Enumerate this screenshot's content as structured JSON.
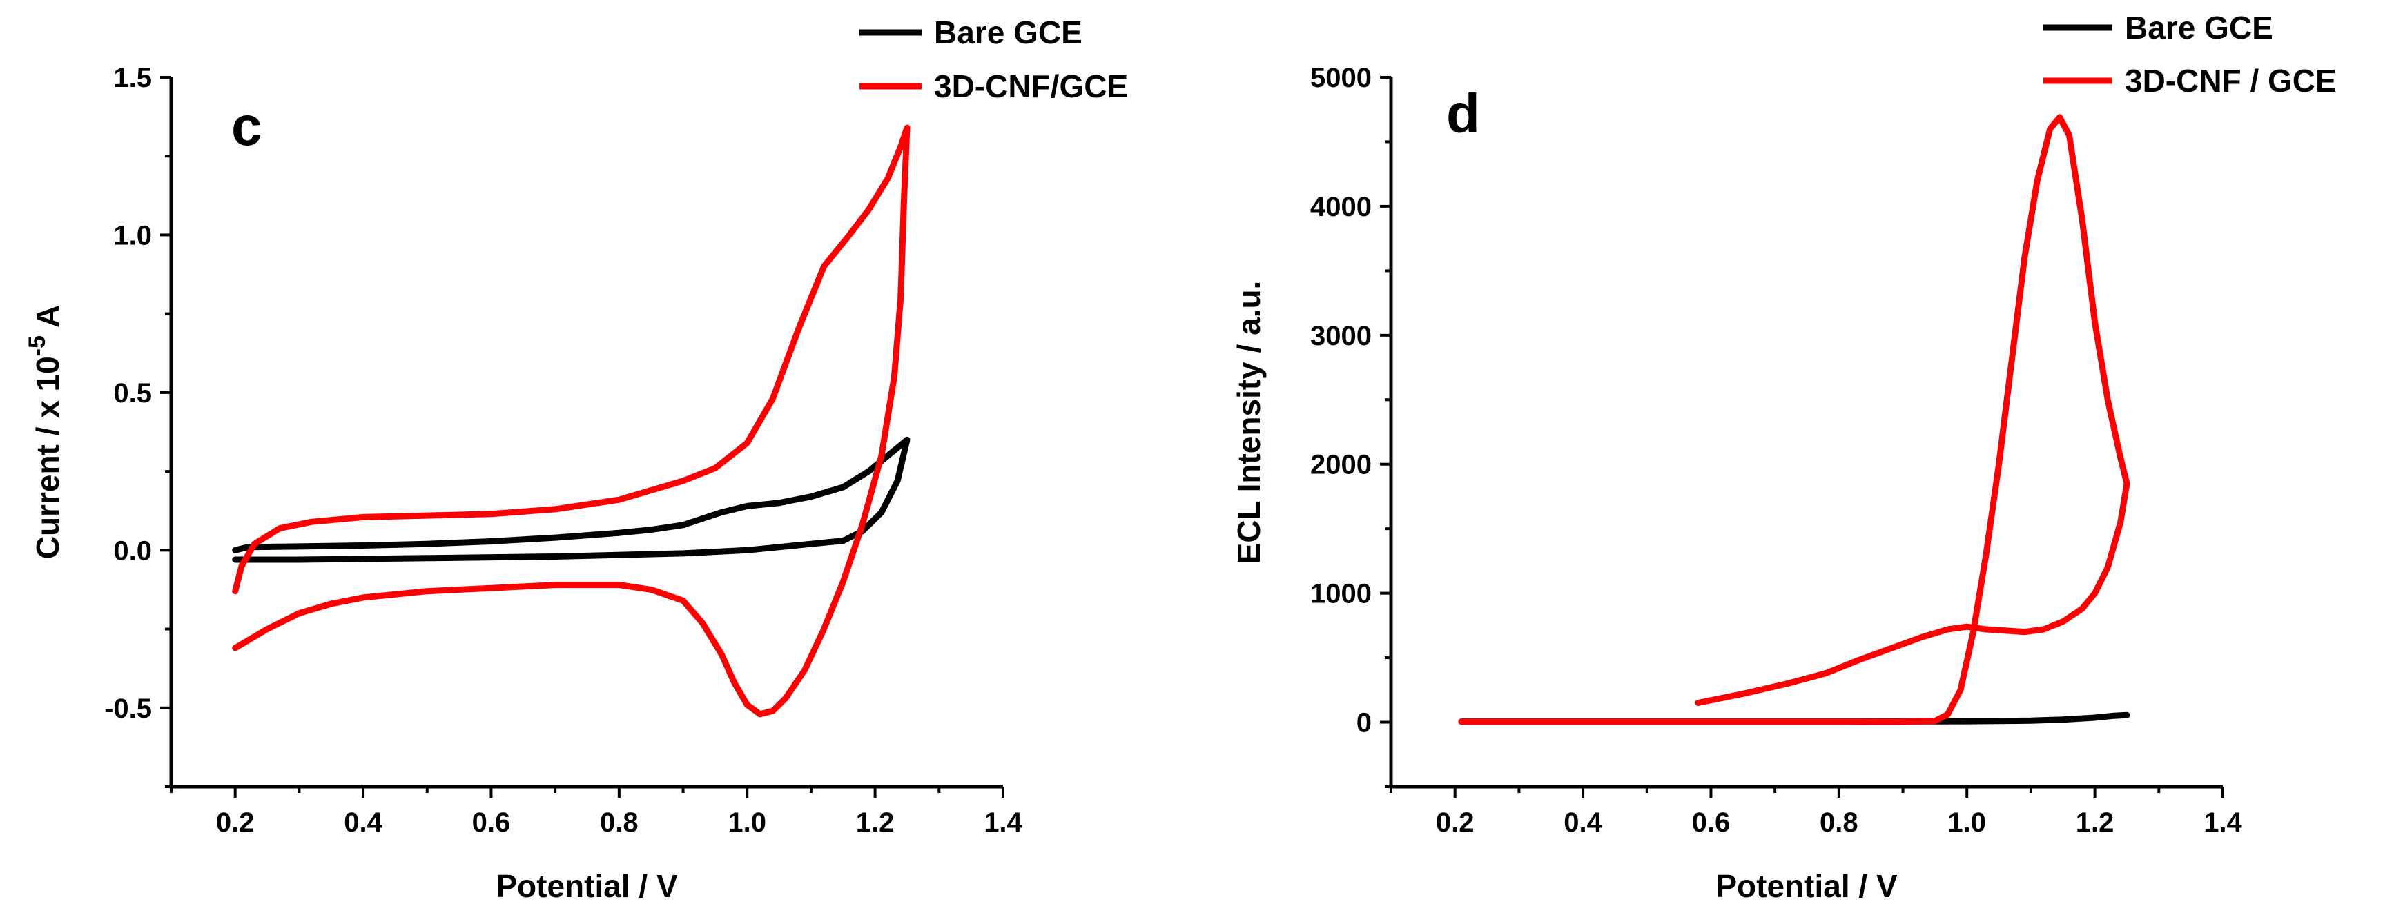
{
  "colors": {
    "bare": "#000000",
    "cnf": "#ff0000"
  },
  "chart_data": [
    {
      "type": "line",
      "panel_label": "c",
      "title": "",
      "xlabel": "Potential / V",
      "ylabel_prefix": "Current / x 10",
      "ylabel_exp": "-5",
      "ylabel_suffix": " A",
      "xlim": [
        0.1,
        1.4
      ],
      "ylim": [
        -0.75,
        1.5
      ],
      "xticks": [
        0.2,
        0.4,
        0.6,
        0.8,
        1.0,
        1.2,
        1.4
      ],
      "xtick_labels": [
        "0.2",
        "0.4",
        "0.6",
        "0.8",
        "1.0",
        "1.2",
        "1.4"
      ],
      "yticks": [
        -0.5,
        0.0,
        0.5,
        1.0,
        1.5
      ],
      "ytick_labels": [
        "-0.5",
        "0.0",
        "0.5",
        "1.0",
        "1.5"
      ],
      "legend_position": "top-right",
      "series": [
        {
          "name": "Bare GCE",
          "color": "#000000",
          "points": [
            [
              0.2,
              -0.03
            ],
            [
              0.3,
              -0.03
            ],
            [
              0.5,
              -0.025
            ],
            [
              0.7,
              -0.02
            ],
            [
              0.9,
              -0.01
            ],
            [
              1.0,
              0.0
            ],
            [
              1.1,
              0.02
            ],
            [
              1.15,
              0.03
            ],
            [
              1.18,
              0.06
            ],
            [
              1.21,
              0.12
            ],
            [
              1.235,
              0.22
            ],
            [
              1.25,
              0.35
            ],
            [
              1.22,
              0.3
            ],
            [
              1.19,
              0.25
            ],
            [
              1.15,
              0.2
            ],
            [
              1.1,
              0.17
            ],
            [
              1.05,
              0.15
            ],
            [
              1.0,
              0.14
            ],
            [
              0.96,
              0.12
            ],
            [
              0.93,
              0.1
            ],
            [
              0.9,
              0.08
            ],
            [
              0.85,
              0.065
            ],
            [
              0.8,
              0.055
            ],
            [
              0.7,
              0.04
            ],
            [
              0.6,
              0.028
            ],
            [
              0.5,
              0.02
            ],
            [
              0.4,
              0.015
            ],
            [
              0.3,
              0.012
            ],
            [
              0.22,
              0.01
            ],
            [
              0.2,
              0.0
            ]
          ]
        },
        {
          "name": "3D-CNF/GCE",
          "color": "#ff0000",
          "points": [
            [
              0.2,
              -0.13
            ],
            [
              0.21,
              -0.05
            ],
            [
              0.23,
              0.02
            ],
            [
              0.27,
              0.07
            ],
            [
              0.32,
              0.09
            ],
            [
              0.4,
              0.105
            ],
            [
              0.5,
              0.11
            ],
            [
              0.6,
              0.115
            ],
            [
              0.7,
              0.13
            ],
            [
              0.8,
              0.16
            ],
            [
              0.9,
              0.22
            ],
            [
              0.95,
              0.26
            ],
            [
              1.0,
              0.34
            ],
            [
              1.04,
              0.48
            ],
            [
              1.08,
              0.7
            ],
            [
              1.12,
              0.9
            ],
            [
              1.16,
              1.0
            ],
            [
              1.19,
              1.08
            ],
            [
              1.22,
              1.18
            ],
            [
              1.24,
              1.28
            ],
            [
              1.25,
              1.34
            ],
            [
              1.245,
              1.1
            ],
            [
              1.24,
              0.8
            ],
            [
              1.23,
              0.55
            ],
            [
              1.21,
              0.3
            ],
            [
              1.18,
              0.08
            ],
            [
              1.15,
              -0.1
            ],
            [
              1.12,
              -0.25
            ],
            [
              1.09,
              -0.38
            ],
            [
              1.06,
              -0.47
            ],
            [
              1.04,
              -0.51
            ],
            [
              1.02,
              -0.52
            ],
            [
              1.0,
              -0.49
            ],
            [
              0.98,
              -0.42
            ],
            [
              0.96,
              -0.33
            ],
            [
              0.93,
              -0.23
            ],
            [
              0.9,
              -0.16
            ],
            [
              0.85,
              -0.125
            ],
            [
              0.8,
              -0.11
            ],
            [
              0.7,
              -0.11
            ],
            [
              0.6,
              -0.12
            ],
            [
              0.5,
              -0.13
            ],
            [
              0.4,
              -0.15
            ],
            [
              0.35,
              -0.17
            ],
            [
              0.3,
              -0.2
            ],
            [
              0.25,
              -0.25
            ],
            [
              0.2,
              -0.31
            ]
          ]
        }
      ]
    },
    {
      "type": "line",
      "panel_label": "d",
      "title": "",
      "xlabel": "Potential / V",
      "ylabel": "ECL Intensity / a.u.",
      "xlim": [
        0.1,
        1.4
      ],
      "ylim": [
        -500,
        5000
      ],
      "xticks": [
        0.2,
        0.4,
        0.6,
        0.8,
        1.0,
        1.2,
        1.4
      ],
      "xtick_labels": [
        "0.2",
        "0.4",
        "0.6",
        "0.8",
        "1.0",
        "1.2",
        "1.4"
      ],
      "yticks": [
        0,
        1000,
        2000,
        3000,
        4000,
        5000
      ],
      "ytick_labels": [
        "0",
        "1000",
        "2000",
        "3000",
        "4000",
        "5000"
      ],
      "legend_position": "top-right",
      "series": [
        {
          "name": "Bare GCE",
          "color": "#000000",
          "points": [
            [
              0.21,
              5
            ],
            [
              0.5,
              5
            ],
            [
              0.8,
              5
            ],
            [
              1.0,
              8
            ],
            [
              1.1,
              12
            ],
            [
              1.15,
              20
            ],
            [
              1.2,
              35
            ],
            [
              1.23,
              50
            ],
            [
              1.25,
              55
            ]
          ]
        },
        {
          "name": "3D-CNF / GCE",
          "color": "#ff0000",
          "points": [
            [
              0.21,
              5
            ],
            [
              0.4,
              5
            ],
            [
              0.6,
              5
            ],
            [
              0.8,
              5
            ],
            [
              0.9,
              5
            ],
            [
              0.95,
              10
            ],
            [
              0.97,
              60
            ],
            [
              0.99,
              250
            ],
            [
              1.01,
              700
            ],
            [
              1.03,
              1300
            ],
            [
              1.05,
              2000
            ],
            [
              1.07,
              2800
            ],
            [
              1.09,
              3600
            ],
            [
              1.11,
              4200
            ],
            [
              1.13,
              4600
            ],
            [
              1.145,
              4690
            ],
            [
              1.16,
              4550
            ],
            [
              1.18,
              3900
            ],
            [
              1.2,
              3100
            ],
            [
              1.22,
              2500
            ],
            [
              1.24,
              2050
            ],
            [
              1.25,
              1850
            ],
            [
              1.24,
              1550
            ],
            [
              1.22,
              1200
            ],
            [
              1.2,
              1000
            ],
            [
              1.18,
              880
            ],
            [
              1.15,
              780
            ],
            [
              1.12,
              720
            ],
            [
              1.09,
              700
            ],
            [
              1.06,
              710
            ],
            [
              1.03,
              720
            ],
            [
              1.0,
              740
            ],
            [
              0.97,
              720
            ],
            [
              0.93,
              660
            ],
            [
              0.88,
              570
            ],
            [
              0.83,
              480
            ],
            [
              0.78,
              380
            ],
            [
              0.72,
              300
            ],
            [
              0.65,
              220
            ],
            [
              0.58,
              150
            ]
          ]
        }
      ]
    }
  ]
}
